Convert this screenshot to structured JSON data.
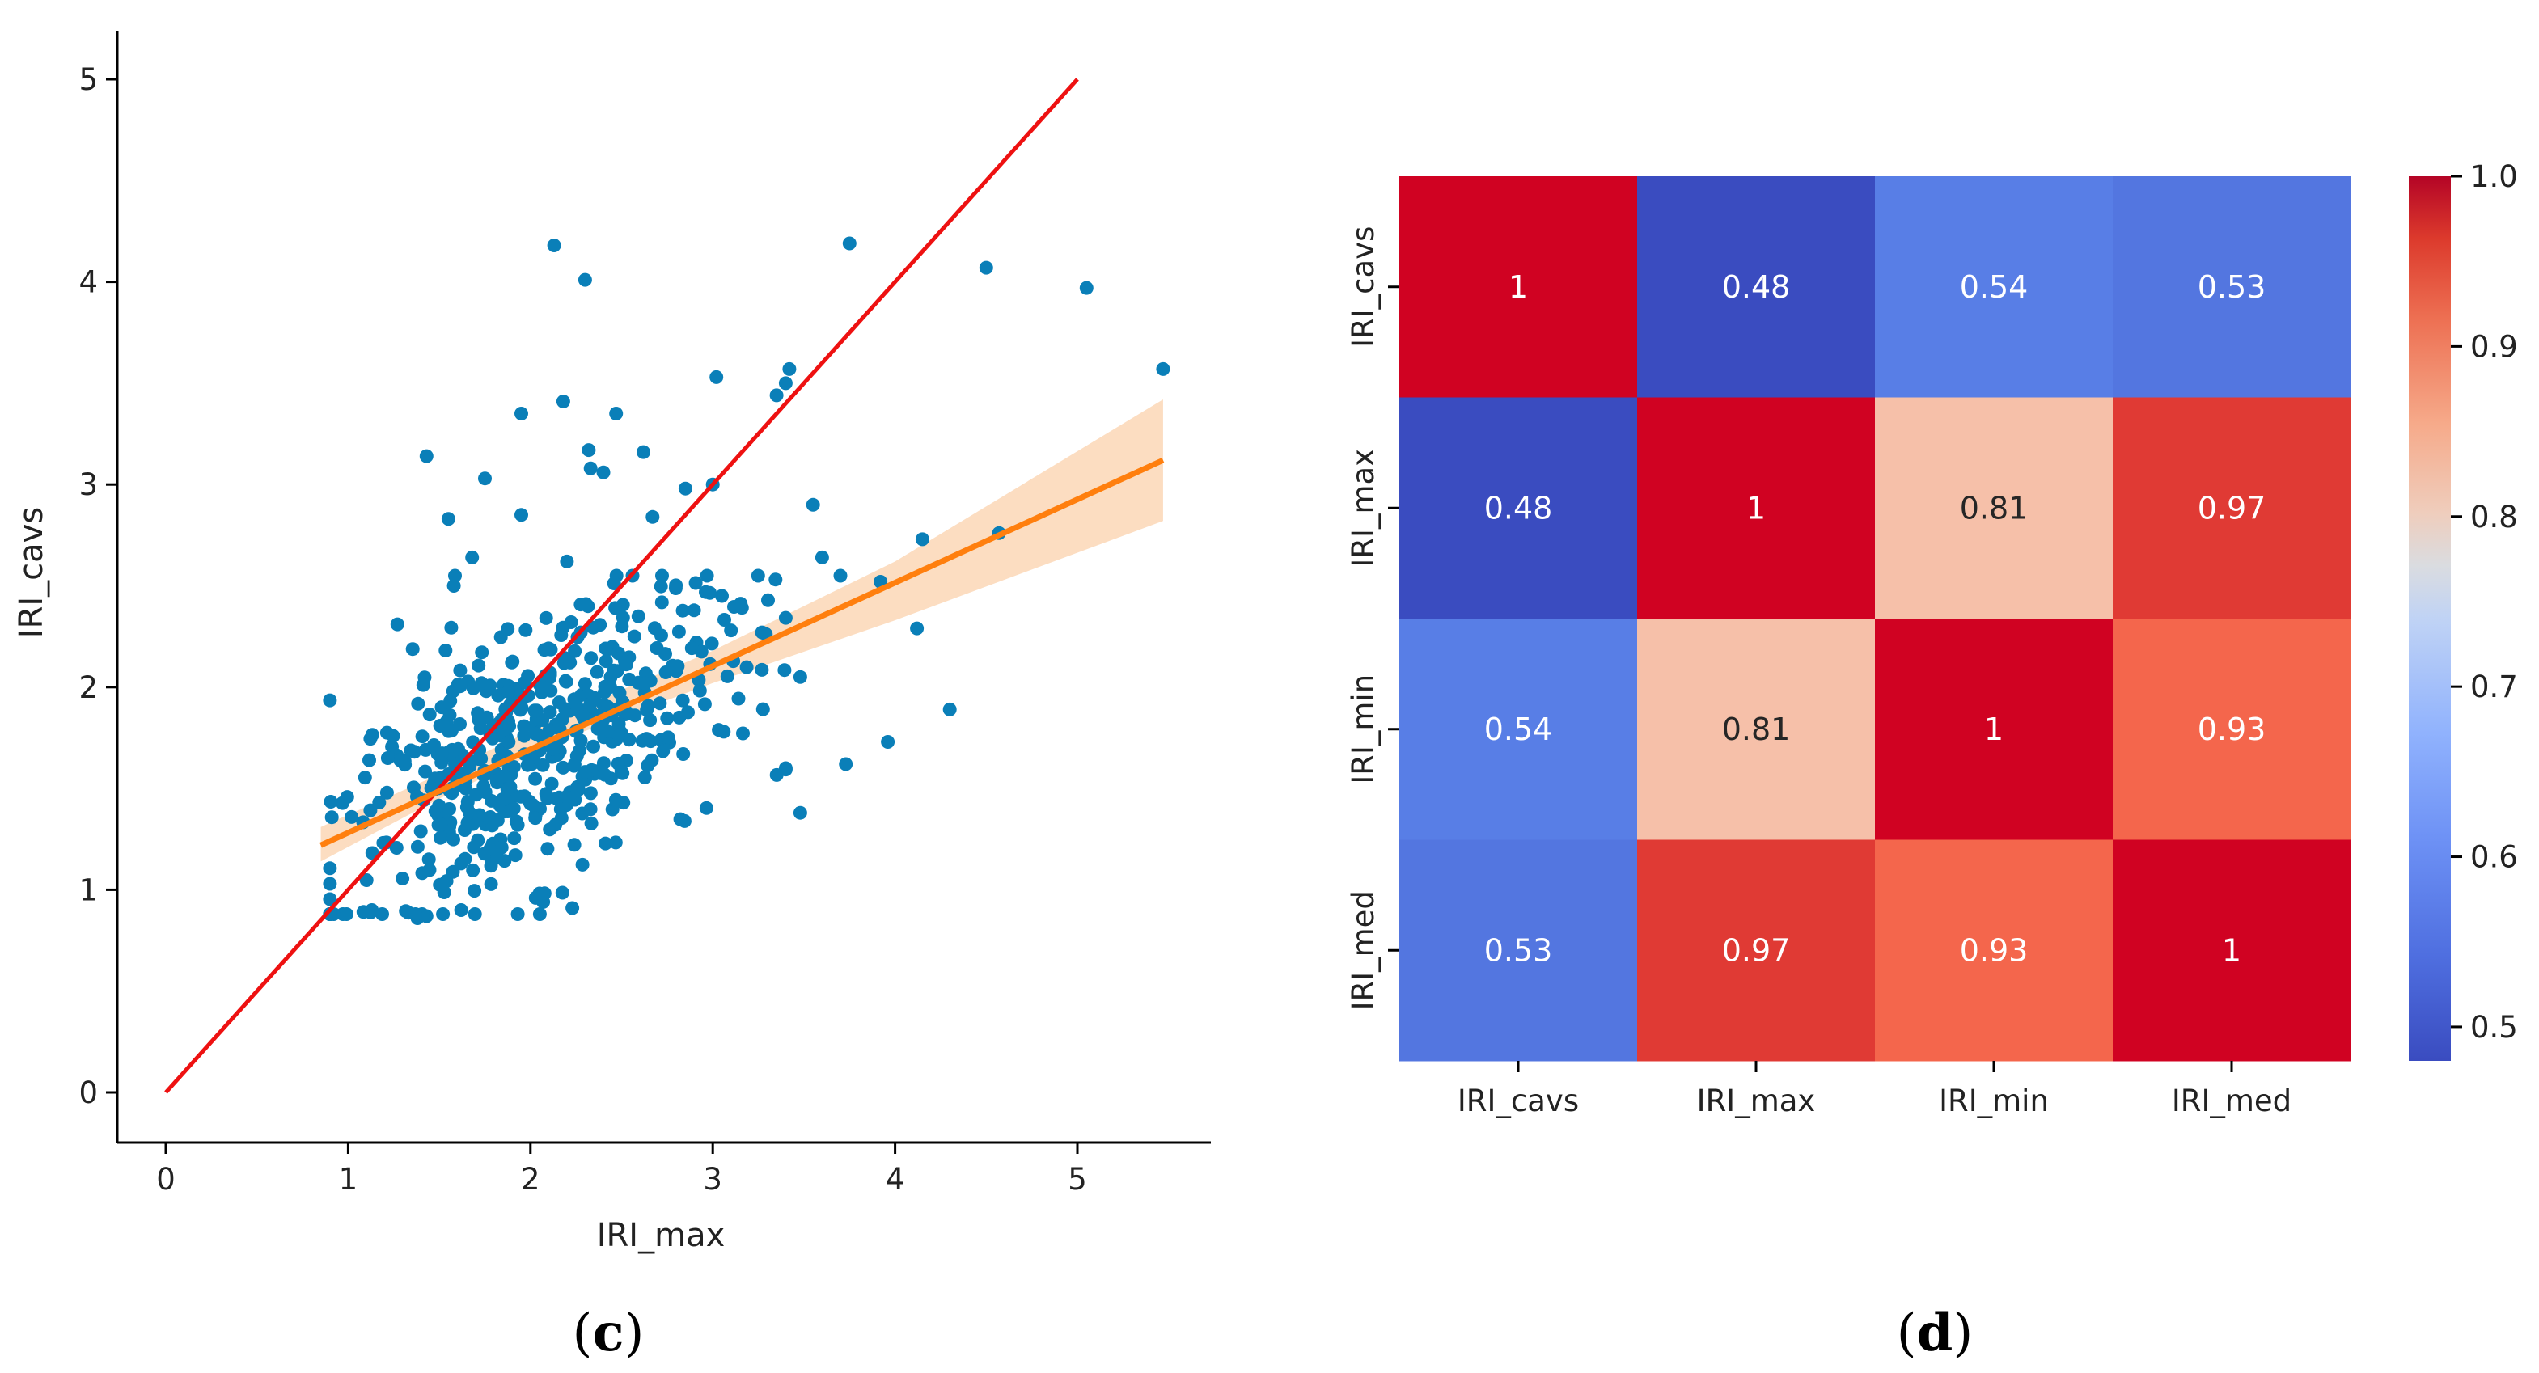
{
  "colors": {
    "scatter": "#0a7fb8",
    "identity_line": "#ee1111",
    "regression_line": "#ff7f0e",
    "confidence_band": "#fbd7b6",
    "axis": "#000000"
  },
  "captions": {
    "left": {
      "open": "(",
      "letter": "c",
      "close": ")"
    },
    "right": {
      "open": "(",
      "letter": "d",
      "close": ")"
    }
  },
  "chart_data": [
    {
      "type": "scatter",
      "title": "",
      "xlabel": "IRI_max",
      "ylabel": "IRI_cavs",
      "xlim": [
        -0.27,
        5.8
      ],
      "ylim": [
        -0.27,
        5.2
      ],
      "xticks": [
        "0",
        "1",
        "2",
        "3",
        "4",
        "5"
      ],
      "yticks": [
        "0",
        "1",
        "2",
        "3",
        "4",
        "5"
      ],
      "identity_line": {
        "x": [
          0,
          5
        ],
        "y": [
          0,
          5
        ]
      },
      "regression": {
        "x": [
          0.85,
          5.47
        ],
        "y": [
          1.22,
          3.12
        ],
        "ci_x": [
          0.85,
          1.5,
          2.2,
          3.0,
          4.0,
          5.47
        ],
        "ci_lower": [
          1.14,
          1.45,
          1.75,
          2.02,
          2.33,
          2.82
        ],
        "ci_upper": [
          1.31,
          1.57,
          1.87,
          2.18,
          2.62,
          3.42
        ]
      },
      "n_points": 560,
      "points": [
        [
          2.13,
          4.18
        ],
        [
          2.3,
          4.01
        ],
        [
          3.75,
          4.19
        ],
        [
          4.5,
          4.07
        ],
        [
          5.05,
          3.97
        ],
        [
          5.47,
          3.57
        ],
        [
          3.02,
          3.53
        ],
        [
          3.42,
          3.57
        ],
        [
          3.4,
          3.5
        ],
        [
          3.35,
          3.44
        ],
        [
          2.18,
          3.41
        ],
        [
          1.95,
          3.35
        ],
        [
          2.47,
          3.35
        ],
        [
          2.32,
          3.17
        ],
        [
          2.62,
          3.16
        ],
        [
          2.33,
          3.08
        ],
        [
          2.4,
          3.06
        ],
        [
          1.43,
          3.14
        ],
        [
          1.75,
          3.03
        ],
        [
          2.85,
          2.98
        ],
        [
          3.0,
          3.0
        ],
        [
          3.55,
          2.9
        ],
        [
          2.67,
          2.84
        ],
        [
          1.95,
          2.85
        ],
        [
          1.55,
          2.83
        ],
        [
          4.15,
          2.73
        ],
        [
          4.57,
          2.76
        ],
        [
          3.6,
          2.64
        ],
        [
          1.68,
          2.64
        ],
        [
          2.2,
          2.62
        ],
        [
          3.7,
          2.55
        ],
        [
          3.05,
          2.45
        ],
        [
          3.92,
          2.52
        ],
        [
          4.12,
          2.29
        ],
        [
          3.27,
          2.27
        ],
        [
          3.1,
          2.28
        ],
        [
          1.27,
          2.31
        ],
        [
          1.58,
          2.5
        ],
        [
          3.48,
          2.05
        ],
        [
          3.96,
          1.73
        ],
        [
          3.73,
          1.62
        ],
        [
          4.3,
          1.89
        ],
        [
          3.48,
          1.38
        ],
        [
          3.4,
          1.6
        ],
        [
          2.23,
          0.91
        ],
        [
          2.07,
          0.94
        ],
        [
          1.62,
          0.9
        ],
        [
          1.38,
          0.86
        ],
        [
          1.43,
          0.87
        ],
        [
          1.13,
          0.9
        ]
      ]
    },
    {
      "type": "heatmap",
      "rows": [
        "IRI_cavs",
        "IRI_max",
        "IRI_min",
        "IRI_med"
      ],
      "columns": [
        "IRI_cavs",
        "IRI_max",
        "IRI_min",
        "IRI_med"
      ],
      "values": [
        [
          1,
          0.48,
          0.54,
          0.53
        ],
        [
          0.48,
          1,
          0.81,
          0.97
        ],
        [
          0.54,
          0.81,
          1,
          0.93
        ],
        [
          0.53,
          0.97,
          0.93,
          1
        ]
      ],
      "annotations": [
        [
          "1",
          "0.48",
          "0.54",
          "0.53"
        ],
        [
          "0.48",
          "1",
          "0.81",
          "0.97"
        ],
        [
          "0.54",
          "0.81",
          "1",
          "0.93"
        ],
        [
          "0.53",
          "0.97",
          "0.93",
          "1"
        ]
      ],
      "colormap": "coolwarm",
      "vmin": 0.48,
      "vmax": 1.0,
      "colorbar_ticks": [
        "0.5",
        "0.6",
        "0.7",
        "0.8",
        "0.9",
        "1.0"
      ],
      "colorbar_values": [
        0.5,
        0.6,
        0.7,
        0.8,
        0.9,
        1.0
      ]
    }
  ]
}
